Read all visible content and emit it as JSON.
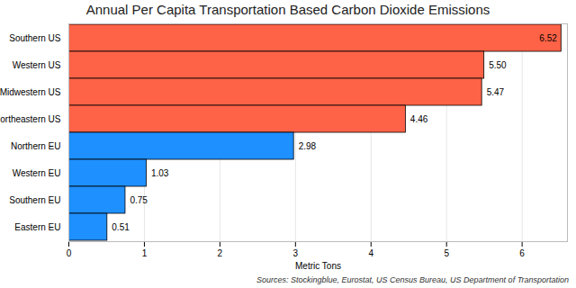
{
  "chart_data": {
    "type": "bar",
    "orientation": "horizontal",
    "title": "Annual Per Capita Transportation Based Carbon Dioxide Emissions",
    "x_label": "Metric Tons",
    "caption": "Sources: Stockingblue, Eurostat, US Census Bureau, US Department of Transportation",
    "categories": [
      "Southern US",
      "Western US",
      "Midwestern US",
      "Northeastern US",
      "Northern EU",
      "Western EU",
      "Southern EU",
      "Eastern EU"
    ],
    "values": [
      6.52,
      5.5,
      5.47,
      4.46,
      2.98,
      1.03,
      0.75,
      0.51
    ],
    "value_labels": [
      "6.52",
      "5.50",
      "5.47",
      "4.46",
      "2.98",
      "1.03",
      "0.75",
      "0.51"
    ],
    "colors": [
      "#ff6347",
      "#ff6347",
      "#ff6347",
      "#ff6347",
      "#1e90ff",
      "#1e90ff",
      "#1e90ff",
      "#1e90ff"
    ],
    "xlim": [
      0,
      6.6
    ],
    "xticks": [
      0,
      1,
      2,
      3,
      4,
      5,
      6
    ],
    "grid": true,
    "data_labels": true
  }
}
